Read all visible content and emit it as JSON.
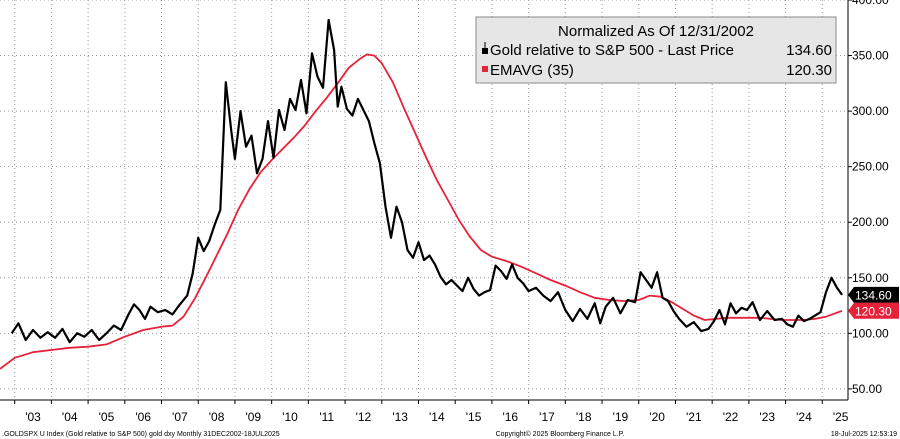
{
  "colors": {
    "gold_series": "#000000",
    "ema_series": "#e8213a",
    "grid": "#9a9a9a",
    "legend_bg": "#e6e6e6"
  },
  "chart_data": {
    "type": "line",
    "title": "Normalized As Of 12/31/2002",
    "ylim": [
      40,
      400
    ],
    "xlim": [
      2002.6,
      2025.7
    ],
    "y_ticks": [
      50,
      100,
      150,
      200,
      250,
      300,
      350,
      400
    ],
    "y_tick_labels": [
      "50.00",
      "100.00",
      "150.00",
      "200.00",
      "250.00",
      "300.00",
      "350.00",
      "400.00"
    ],
    "x_ticks": [
      2003,
      2004,
      2005,
      2006,
      2007,
      2008,
      2009,
      2010,
      2011,
      2012,
      2013,
      2014,
      2015,
      2016,
      2017,
      2018,
      2019,
      2020,
      2021,
      2022,
      2023,
      2024,
      2025
    ],
    "x_tick_labels": [
      "'03",
      "'04",
      "'05",
      "'06",
      "'07",
      "'08",
      "'09",
      "'10",
      "'11",
      "'12",
      "'13",
      "'14",
      "'15",
      "'16",
      "'17",
      "'18",
      "'19",
      "'20",
      "'21",
      "'22",
      "'23",
      "'24",
      "'25"
    ],
    "grid": true,
    "legend_position": "top-right",
    "series": [
      {
        "name": "Gold relative to S&P 500 - Last Price",
        "last_value": "134.60",
        "color": "#000000",
        "x": [
          2002.92,
          2003.1,
          2003.3,
          2003.5,
          2003.7,
          2003.9,
          2004.1,
          2004.3,
          2004.5,
          2004.7,
          2004.9,
          2005.1,
          2005.3,
          2005.5,
          2005.7,
          2005.9,
          2006.1,
          2006.25,
          2006.4,
          2006.55,
          2006.7,
          2006.9,
          2007.1,
          2007.3,
          2007.5,
          2007.7,
          2007.85,
          2008.0,
          2008.15,
          2008.3,
          2008.45,
          2008.6,
          2008.75,
          2008.9,
          2009.0,
          2009.15,
          2009.3,
          2009.45,
          2009.6,
          2009.75,
          2009.9,
          2010.05,
          2010.2,
          2010.35,
          2010.5,
          2010.65,
          2010.8,
          2010.95,
          2011.1,
          2011.25,
          2011.4,
          2011.55,
          2011.7,
          2011.8,
          2011.9,
          2012.05,
          2012.2,
          2012.35,
          2012.5,
          2012.65,
          2012.8,
          2012.95,
          2013.1,
          2013.25,
          2013.4,
          2013.55,
          2013.7,
          2013.85,
          2014.0,
          2014.15,
          2014.3,
          2014.45,
          2014.6,
          2014.75,
          2014.9,
          2015.05,
          2015.2,
          2015.35,
          2015.5,
          2015.65,
          2015.8,
          2015.95,
          2016.1,
          2016.25,
          2016.4,
          2016.55,
          2016.7,
          2016.85,
          2017.0,
          2017.2,
          2017.4,
          2017.6,
          2017.8,
          2018.0,
          2018.2,
          2018.4,
          2018.6,
          2018.8,
          2018.95,
          2019.1,
          2019.3,
          2019.5,
          2019.7,
          2019.9,
          2020.05,
          2020.2,
          2020.35,
          2020.5,
          2020.65,
          2020.8,
          2020.95,
          2021.1,
          2021.3,
          2021.5,
          2021.7,
          2021.9,
          2022.05,
          2022.2,
          2022.35,
          2022.5,
          2022.65,
          2022.8,
          2022.95,
          2023.1,
          2023.3,
          2023.5,
          2023.7,
          2023.9,
          2024.05,
          2024.2,
          2024.35,
          2024.5,
          2024.65,
          2024.8,
          2024.95,
          2025.1,
          2025.25,
          2025.4,
          2025.54
        ],
        "y": [
          100,
          109,
          94,
          103,
          96,
          101,
          96,
          104,
          92,
          100,
          97,
          103,
          94,
          100,
          107,
          103,
          117,
          126,
          121,
          113,
          124,
          119,
          121,
          117,
          126,
          134,
          154,
          186,
          174,
          183,
          198,
          211,
          326,
          282,
          257,
          300,
          268,
          278,
          244,
          257,
          291,
          258,
          301,
          283,
          311,
          301,
          328,
          298,
          352,
          331,
          321,
          382,
          355,
          304,
          322,
          302,
          296,
          311,
          301,
          291,
          271,
          253,
          214,
          186,
          214,
          200,
          175,
          168,
          182,
          166,
          170,
          162,
          151,
          144,
          148,
          143,
          138,
          150,
          140,
          134,
          137,
          139,
          161,
          156,
          149,
          162,
          150,
          145,
          138,
          141,
          134,
          129,
          137,
          121,
          111,
          122,
          113,
          127,
          109,
          124,
          132,
          118,
          130,
          128,
          155,
          148,
          141,
          155,
          132,
          129,
          120,
          113,
          106,
          110,
          102,
          104,
          111,
          121,
          108,
          127,
          118,
          123,
          121,
          128,
          112,
          120,
          112,
          113,
          108,
          106,
          116,
          111,
          113,
          116,
          119,
          137,
          150,
          141,
          134.6
        ]
      },
      {
        "name": "EMAVG (35)",
        "last_value": "120.30",
        "color": "#e8213a",
        "x": [
          2002.6,
          2003.0,
          2003.5,
          2004.0,
          2004.5,
          2005.0,
          2005.5,
          2006.0,
          2006.5,
          2007.0,
          2007.3,
          2007.6,
          2007.9,
          2008.2,
          2008.5,
          2008.8,
          2009.1,
          2009.4,
          2009.7,
          2010.0,
          2010.3,
          2010.6,
          2010.9,
          2011.2,
          2011.5,
          2011.8,
          2012.1,
          2012.4,
          2012.6,
          2012.8,
          2013.0,
          2013.3,
          2013.6,
          2013.9,
          2014.2,
          2014.5,
          2014.8,
          2015.1,
          2015.4,
          2015.7,
          2016.0,
          2016.4,
          2016.8,
          2017.2,
          2017.6,
          2018.0,
          2018.4,
          2018.8,
          2019.2,
          2019.6,
          2020.0,
          2020.3,
          2020.6,
          2020.9,
          2021.2,
          2021.5,
          2021.8,
          2022.1,
          2022.4,
          2022.7,
          2023.0,
          2023.3,
          2023.6,
          2023.9,
          2024.2,
          2024.5,
          2024.8,
          2025.1,
          2025.54
        ],
        "y": [
          68,
          78,
          83,
          85,
          87,
          88,
          90,
          97,
          103,
          106,
          107,
          115,
          131,
          150,
          170,
          190,
          212,
          230,
          245,
          256,
          266,
          276,
          287,
          300,
          312,
          325,
          339,
          347,
          351,
          350,
          343,
          326,
          303,
          281,
          259,
          238,
          220,
          202,
          187,
          175,
          169,
          165,
          160,
          154,
          148,
          143,
          137,
          132,
          130,
          129,
          130,
          134,
          133,
          128,
          122,
          116,
          112,
          113,
          114,
          114,
          114,
          114,
          113,
          112,
          112,
          112,
          113,
          115,
          120.3
        ]
      }
    ]
  },
  "legend": {
    "title": "Normalized As Of 12/31/2002",
    "items": [
      {
        "label": "Gold relative to S&P 500 - Last Price",
        "value": "134.60"
      },
      {
        "label": "EMAVG (35)",
        "value": "120.30"
      }
    ]
  },
  "badges": {
    "gold_last": "134.60",
    "ema_last": "120.30"
  },
  "footer": {
    "left": ".GOLDSPX U Index (Gold relative to S&P 500) gold dxy  Monthly 31DEC2002-18JUL2025",
    "center": "Copyright© 2025 Bloomberg Finance L.P.",
    "right": "18-Jul-2025 12:53:19"
  }
}
